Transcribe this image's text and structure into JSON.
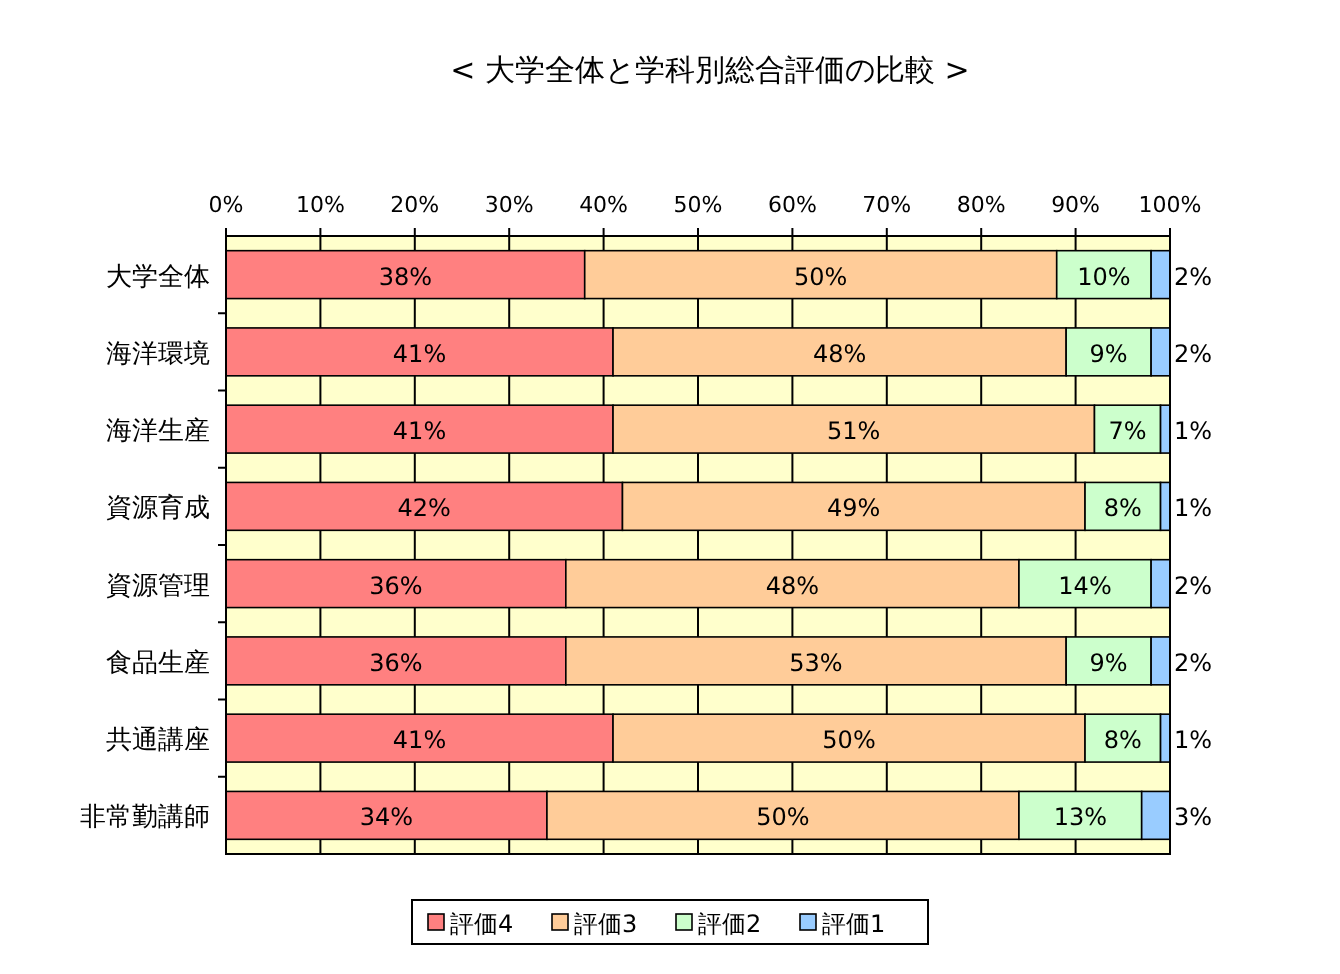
{
  "chart_data": {
    "type": "bar",
    "orientation": "horizontal",
    "stacked": true,
    "title": "<  大学全体と学科別総合評価の比較  >",
    "categories": [
      "大学全体",
      "海洋環境",
      "海洋生産",
      "資源育成",
      "資源管理",
      "食品生産",
      "共通講座",
      "非常勤講師"
    ],
    "series": [
      {
        "name": "評価4",
        "color": "#ff8080",
        "values": [
          38,
          41,
          41,
          42,
          36,
          36,
          41,
          34
        ],
        "value_labels": [
          "38%",
          "41%",
          "41%",
          "42%",
          "36%",
          "36%",
          "41%",
          "34%"
        ]
      },
      {
        "name": "評価3",
        "color": "#ffcc99",
        "values": [
          50,
          48,
          51,
          49,
          48,
          53,
          50,
          50
        ],
        "value_labels": [
          "50%",
          "48%",
          "51%",
          "49%",
          "48%",
          "53%",
          "50%",
          "50%"
        ]
      },
      {
        "name": "評価2",
        "color": "#ccffcc",
        "values": [
          10,
          9,
          7,
          8,
          14,
          9,
          8,
          13
        ],
        "value_labels": [
          "10%",
          "9%",
          "7%",
          "8%",
          "14%",
          "9%",
          "8%",
          "13%"
        ]
      },
      {
        "name": "評価1",
        "color": "#99ccff",
        "values": [
          2,
          2,
          1,
          1,
          2,
          2,
          1,
          3
        ],
        "value_labels": [
          "2%",
          "2%",
          "1%",
          "1%",
          "2%",
          "2%",
          "1%",
          "3%"
        ]
      }
    ],
    "xlim": [
      0,
      100
    ],
    "xticks": [
      {
        "value": 0,
        "label": "0%"
      },
      {
        "value": 10,
        "label": "10%"
      },
      {
        "value": 20,
        "label": "20%"
      },
      {
        "value": 30,
        "label": "30%"
      },
      {
        "value": 40,
        "label": "40%"
      },
      {
        "value": 50,
        "label": "50%"
      },
      {
        "value": 60,
        "label": "60%"
      },
      {
        "value": 70,
        "label": "70%"
      },
      {
        "value": 80,
        "label": "80%"
      },
      {
        "value": 90,
        "label": "90%"
      },
      {
        "value": 100,
        "label": "100%"
      }
    ],
    "grid": "x",
    "legend": "bottom"
  }
}
